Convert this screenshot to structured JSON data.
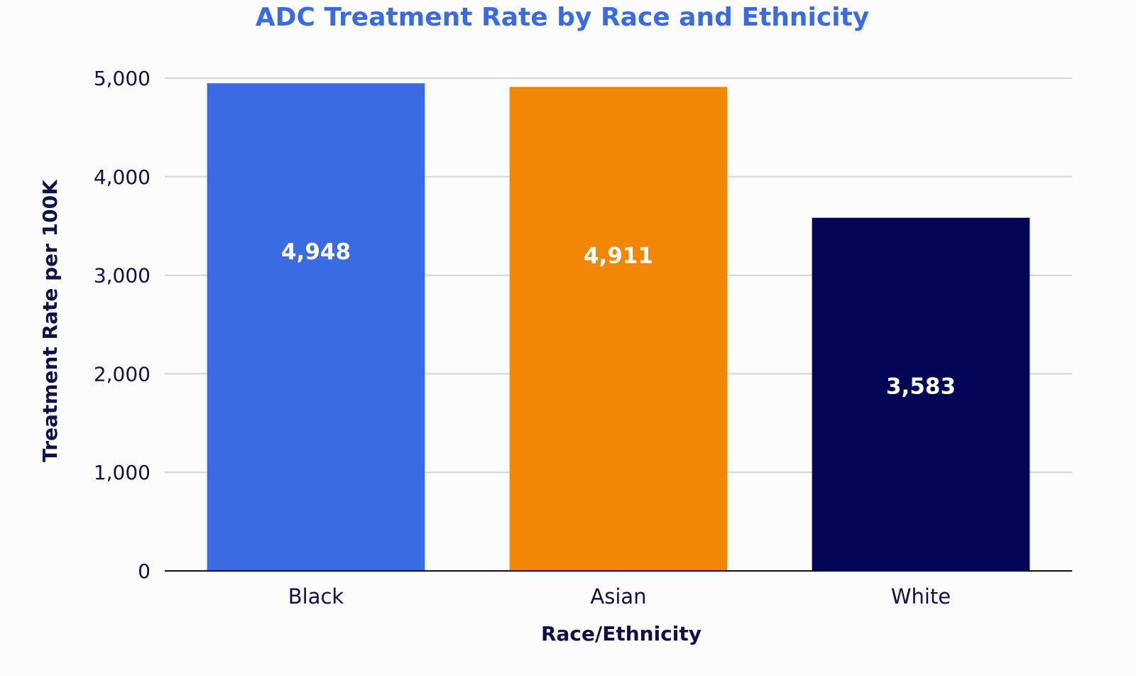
{
  "chart_data": {
    "type": "bar",
    "title": "ADC Treatment Rate by Race and Ethnicity",
    "xlabel": "Race/Ethnicity",
    "ylabel": "Treatment Rate per 100K",
    "categories": [
      "Black",
      "Asian",
      "White"
    ],
    "values": [
      4948,
      4911,
      3583
    ],
    "data_labels": [
      "4,948",
      "4,911",
      "3,583"
    ],
    "bar_colors": [
      "#3a6be2",
      "#f28705",
      "#020654"
    ],
    "ylim": [
      0,
      5000
    ],
    "yticks": [
      0,
      1000,
      2000,
      3000,
      4000,
      5000
    ],
    "ytick_labels": [
      "0",
      "1,000",
      "2,000",
      "3,000",
      "4,000",
      "5,000"
    ],
    "grid": true,
    "legend": "none",
    "title_color": "#3a6be2"
  }
}
